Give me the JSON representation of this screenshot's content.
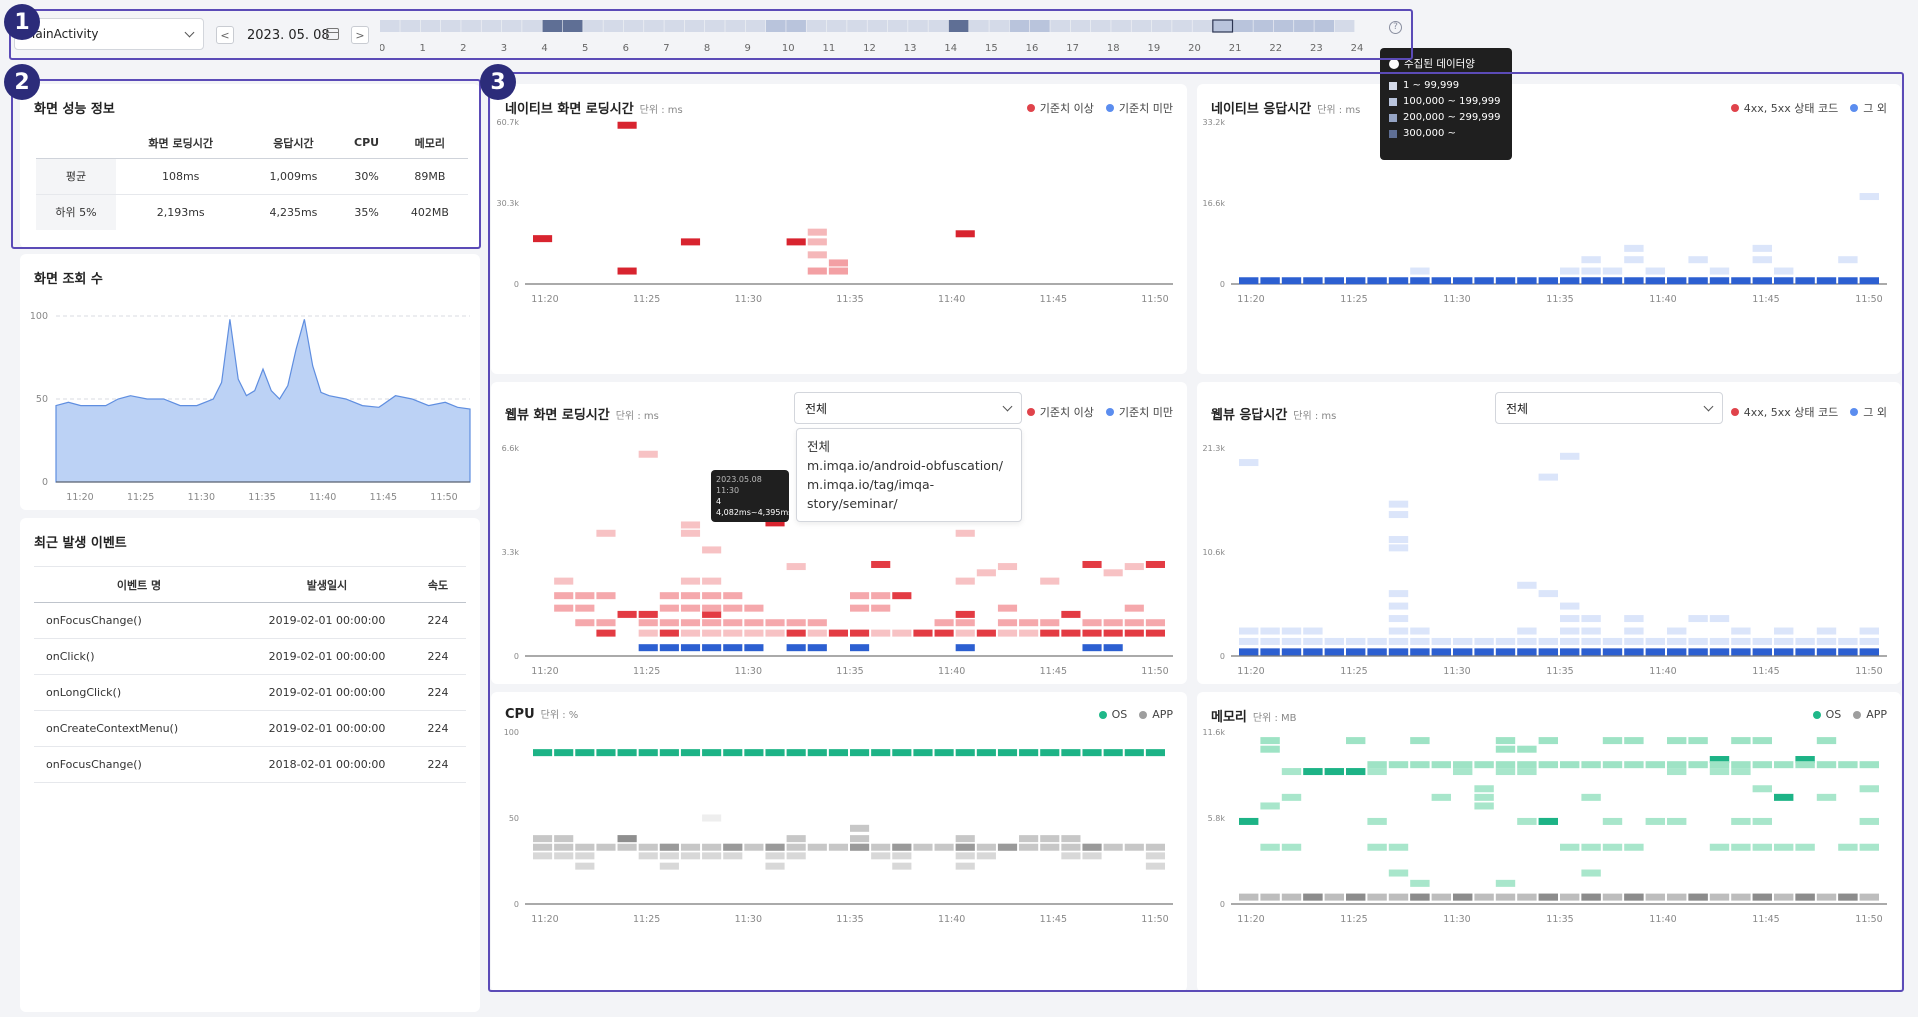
{
  "toolbar": {
    "activity_select": "MainActivity",
    "date": "2023. 05. 08",
    "prev_label": "<",
    "next_label": ">",
    "hours": [
      "0",
      "1",
      "2",
      "3",
      "4",
      "5",
      "6",
      "7",
      "8",
      "9",
      "10",
      "11",
      "12",
      "13",
      "14",
      "15",
      "16",
      "17",
      "18",
      "19",
      "20",
      "21",
      "22",
      "23",
      "24"
    ],
    "help_label": "?"
  },
  "data_legend": {
    "title": "수집된 데이터양",
    "items": [
      {
        "label": "1 ~ 99,999",
        "color": "#d4dae8"
      },
      {
        "label": "100,000 ~ 199,999",
        "color": "#b9c4dc"
      },
      {
        "label": "200,000 ~ 299,999",
        "color": "#95a4c4"
      },
      {
        "label": "300,000 ~",
        "color": "#5f6f95"
      }
    ]
  },
  "badges": [
    "1",
    "2",
    "3"
  ],
  "perf": {
    "title": "화면 성능 정보",
    "headers": [
      "",
      "화면 로딩시간",
      "응답시간",
      "CPU",
      "메모리"
    ],
    "rows": [
      [
        "평균",
        "108ms",
        "1,009ms",
        "30%",
        "89MB"
      ],
      [
        "하위 5%",
        "2,193ms",
        "4,235ms",
        "35%",
        "402MB"
      ]
    ]
  },
  "views": {
    "title": "화면 조회 수",
    "y_ticks": [
      "100",
      "50",
      "0"
    ]
  },
  "events": {
    "title": "최근 발생 이벤트",
    "headers": [
      "이벤트 명",
      "발생일시",
      "속도"
    ],
    "rows": [
      [
        "onFocusChange()",
        "2019-02-01 00:00:00",
        "224"
      ],
      [
        "onClick()",
        "2019-02-01 00:00:00",
        "224"
      ],
      [
        "onLongClick()",
        "2019-02-01 00:00:00",
        "224"
      ],
      [
        "onCreateContextMenu()",
        "2019-02-01 00:00:00",
        "224"
      ],
      [
        "onFocusChange()",
        "2018-02-01 00:00:00",
        "224"
      ]
    ]
  },
  "time_ticks": [
    "11:20",
    "11:25",
    "11:30",
    "11:35",
    "11:40",
    "11:45",
    "11:50"
  ],
  "charts": {
    "native_loading": {
      "title": "네이티브 화면 로딩시간",
      "unit": "단위 : ms",
      "y_ticks": [
        "60.7k",
        "30.3k",
        "0"
      ],
      "legend": [
        "기준치 이상",
        "기준치 미만"
      ]
    },
    "native_response": {
      "title": "네이티브 응답시간",
      "unit": "단위 : ms",
      "y_ticks": [
        "33.2k",
        "16.6k",
        "0"
      ],
      "legend": [
        "4xx, 5xx 상태 코드",
        "그 외"
      ]
    },
    "webview_loading": {
      "title": "웹뷰 화면 로딩시간",
      "unit": "단위 : ms",
      "y_ticks": [
        "6.6k",
        "3.3k",
        "0"
      ],
      "legend": [
        "기준치 이상",
        "기준치 미만"
      ],
      "select": "전체"
    },
    "webview_response": {
      "title": "웹뷰 응답시간",
      "unit": "단위 : ms",
      "y_ticks": [
        "21.3k",
        "10.6k",
        "0"
      ],
      "legend": [
        "4xx, 5xx 상태 코드",
        "그 외"
      ],
      "select": "전체"
    },
    "cpu": {
      "title": "CPU",
      "unit": "단위 : %",
      "y_ticks": [
        "100",
        "50",
        "0"
      ],
      "legend": [
        "OS",
        "APP"
      ]
    },
    "memory": {
      "title": "메모리",
      "unit": "단위 : MB",
      "y_ticks": [
        "11.6k",
        "5.8k",
        "0"
      ],
      "legend": [
        "OS",
        "APP"
      ]
    }
  },
  "webview_dropdown": {
    "options": [
      "전체",
      "m.imqa.io/android-obfuscation/",
      "m.imqa.io/tag/imqa-story/seminar/"
    ]
  },
  "webview_tooltip": {
    "date": "2023.05.08",
    "time": "11:30",
    "count": "4",
    "range": "4,082ms~4,395ms"
  },
  "colors": {
    "red": "#e0434b",
    "blue": "#3d6fd8",
    "green": "#1fb889",
    "gray": "#9e9e9e",
    "accent": "#5b4bb7"
  }
}
